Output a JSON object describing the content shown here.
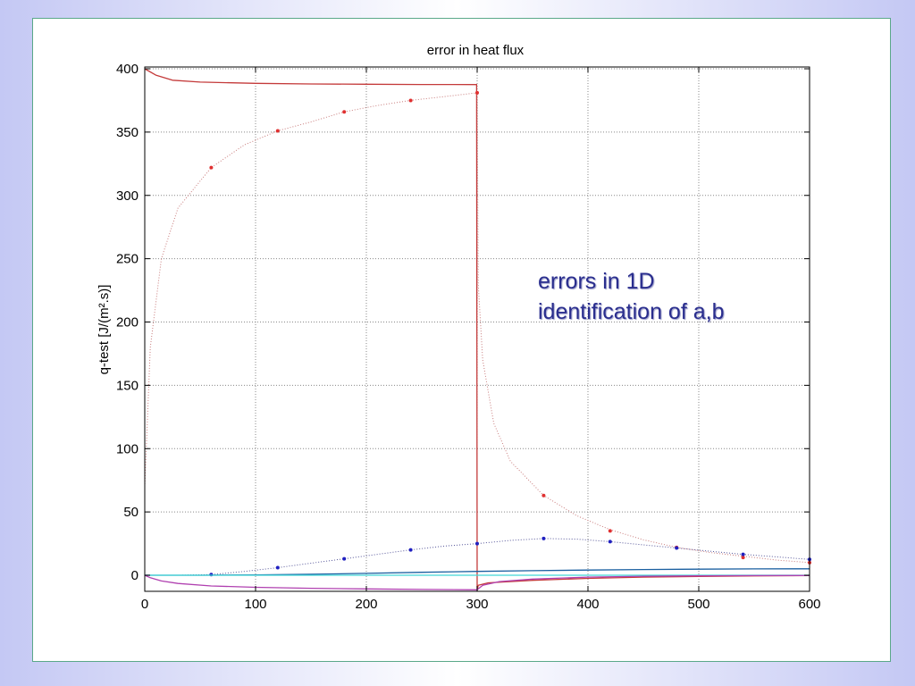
{
  "slide": {
    "background_colors": [
      "#c4c8f4",
      "#ffffff"
    ],
    "frame_border": "#5aa889"
  },
  "annotation": {
    "line1": "errors in 1D",
    "line2": "identification of a,b",
    "color": "#2a2e8e"
  },
  "chart_data": {
    "type": "line",
    "title": "error in heat flux",
    "xlabel": "",
    "ylabel": "q-test [J/(m².s)]",
    "xlim": [
      0,
      600
    ],
    "ylim": [
      -12,
      400
    ],
    "xticks": [
      0,
      100,
      200,
      300,
      400,
      500,
      600
    ],
    "yticks": [
      0,
      50,
      100,
      150,
      200,
      250,
      300,
      350,
      400
    ],
    "grid": true,
    "series": [
      {
        "color": "#c43a3a",
        "style": "solid",
        "x": [
          0,
          10,
          25,
          50,
          100,
          150,
          200,
          250,
          299.5,
          300,
          301,
          310,
          350,
          400,
          450,
          500,
          550,
          600
        ],
        "y": [
          400,
          395,
          391,
          389.5,
          388.5,
          388,
          387.8,
          387.6,
          387.5,
          -12,
          -8,
          -6,
          -4,
          -2.5,
          -1.5,
          -1,
          -0.5,
          -0.3
        ]
      },
      {
        "color": "#c87a7a",
        "style": "dotted",
        "x": [
          0,
          5,
          15,
          30,
          60,
          90,
          120,
          150,
          180,
          210,
          240,
          270,
          300,
          301,
          305,
          315,
          330,
          360,
          390,
          420,
          450,
          480,
          510,
          540,
          570,
          600
        ],
        "y": [
          70,
          180,
          250,
          290,
          322,
          340,
          351,
          358,
          366,
          371,
          375,
          378,
          381,
          230,
          170,
          120,
          90,
          63,
          47,
          36,
          28,
          22,
          18,
          15,
          12,
          10
        ]
      },
      {
        "color": "#e03030",
        "style": "markers",
        "x": [
          60,
          120,
          180,
          240,
          300,
          360,
          420,
          480,
          540,
          600
        ],
        "y": [
          322,
          351,
          366,
          375,
          381,
          63,
          35,
          22,
          14,
          10
        ]
      },
      {
        "color": "#555599",
        "style": "dotted",
        "x": [
          0,
          30,
          60,
          90,
          120,
          150,
          180,
          210,
          240,
          270,
          300,
          330,
          360,
          390,
          420,
          450,
          480,
          510,
          540,
          570,
          600
        ],
        "y": [
          0,
          0,
          0.5,
          3,
          6,
          9.5,
          13,
          16.5,
          20,
          23,
          25,
          27.5,
          29,
          28.5,
          26.5,
          24,
          21.5,
          19,
          16.5,
          14.5,
          12.5
        ]
      },
      {
        "color": "#2020c0",
        "style": "markers",
        "x": [
          60,
          120,
          180,
          240,
          300,
          360,
          420,
          480,
          540,
          600
        ],
        "y": [
          0.5,
          6,
          13,
          20,
          25,
          29,
          26.5,
          21.5,
          16.5,
          12.5
        ]
      },
      {
        "color": "#1a5fa0",
        "style": "solid",
        "x": [
          0,
          50,
          100,
          150,
          200,
          250,
          300,
          350,
          400,
          450,
          500,
          550,
          600
        ],
        "y": [
          0,
          0,
          0.3,
          0.8,
          1.5,
          2.3,
          3,
          3.6,
          4.1,
          4.5,
          4.8,
          5,
          5.1
        ]
      },
      {
        "color": "#40d8d8",
        "style": "solid",
        "x": [
          0,
          600
        ],
        "y": [
          0,
          0
        ]
      },
      {
        "color": "#b040b0",
        "style": "solid",
        "x": [
          0,
          5,
          15,
          30,
          60,
          100,
          150,
          200,
          250,
          299.5,
          300,
          305,
          320,
          350,
          400,
          450,
          500,
          550,
          600
        ],
        "y": [
          0,
          -2,
          -4.5,
          -6.5,
          -8.5,
          -9.5,
          -10.3,
          -10.8,
          -11.2,
          -11.5,
          -11.5,
          -8,
          -5,
          -3,
          -1.5,
          -0.8,
          -0.5,
          -0.3,
          -0.2
        ]
      }
    ]
  }
}
